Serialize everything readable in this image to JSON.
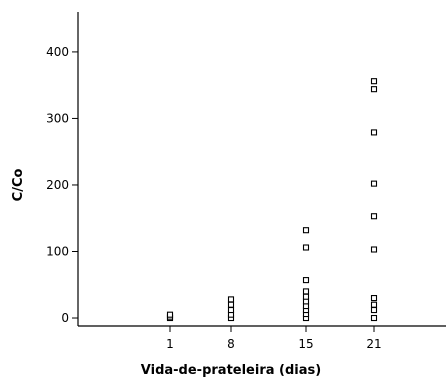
{
  "chart_data": {
    "type": "scatter",
    "title": "",
    "xlabel": "Vida-de-prateleira (dias)",
    "ylabel": "C/Co",
    "categories": [
      "1",
      "8",
      "15",
      "21"
    ],
    "yticks": [
      0,
      100,
      200,
      300,
      400
    ],
    "ylim": [
      -12,
      460
    ],
    "grid": false,
    "legend": "none",
    "series": [
      {
        "points": [
          {
            "x": "1",
            "y": 0
          },
          {
            "x": "1",
            "y": 2
          },
          {
            "x": "1",
            "y": 5
          },
          {
            "x": "8",
            "y": 0
          },
          {
            "x": "8",
            "y": 5
          },
          {
            "x": "8",
            "y": 12
          },
          {
            "x": "8",
            "y": 20
          },
          {
            "x": "8",
            "y": 28
          },
          {
            "x": "15",
            "y": 0
          },
          {
            "x": "15",
            "y": 6
          },
          {
            "x": "15",
            "y": 12
          },
          {
            "x": "15",
            "y": 18
          },
          {
            "x": "15",
            "y": 25
          },
          {
            "x": "15",
            "y": 32
          },
          {
            "x": "15",
            "y": 40
          },
          {
            "x": "15",
            "y": 57
          },
          {
            "x": "15",
            "y": 106
          },
          {
            "x": "15",
            "y": 132
          },
          {
            "x": "21",
            "y": 0
          },
          {
            "x": "21",
            "y": 12
          },
          {
            "x": "21",
            "y": 20
          },
          {
            "x": "21",
            "y": 30
          },
          {
            "x": "21",
            "y": 103
          },
          {
            "x": "21",
            "y": 153
          },
          {
            "x": "21",
            "y": 202
          },
          {
            "x": "21",
            "y": 279
          },
          {
            "x": "21",
            "y": 344
          },
          {
            "x": "21",
            "y": 356
          }
        ]
      }
    ]
  }
}
